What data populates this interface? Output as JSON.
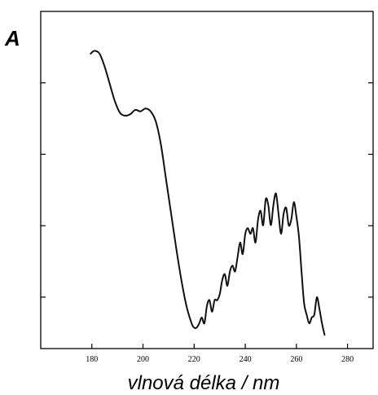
{
  "chart_data": {
    "type": "line",
    "panel_label": "A",
    "xlabel": "vlnová délka / nm",
    "ylabel": "",
    "xlim": [
      160,
      290
    ],
    "xticks": [
      180,
      200,
      220,
      240,
      260,
      280
    ],
    "xtick_labels": [
      "180",
      "200",
      "220",
      "240",
      "260",
      "280"
    ],
    "ylim": [
      0,
      1
    ],
    "y_tick_count": 4,
    "y_tick_labels": [],
    "grid": false,
    "series": [
      {
        "x": [
          179.5,
          181,
          183,
          185,
          187,
          189,
          191,
          193,
          195,
          197,
          199,
          201,
          203,
          205,
          207,
          209,
          211,
          213,
          215,
          217,
          219,
          220,
          221,
          222,
          223,
          224,
          225,
          226,
          227,
          228,
          229,
          230,
          231,
          232,
          233,
          234,
          235,
          236,
          237,
          238,
          239,
          240,
          241,
          242,
          243,
          244,
          245,
          246,
          247,
          248,
          249,
          250,
          251,
          252,
          253,
          254,
          255,
          256,
          257,
          258,
          259,
          260,
          261,
          262,
          263,
          264,
          265,
          266,
          267,
          268,
          269,
          270,
          271
        ],
        "y": [
          0.955,
          0.965,
          0.955,
          0.91,
          0.85,
          0.79,
          0.75,
          0.74,
          0.745,
          0.76,
          0.755,
          0.765,
          0.755,
          0.72,
          0.64,
          0.52,
          0.4,
          0.28,
          0.17,
          0.08,
          0.02,
          0.005,
          0.005,
          0.02,
          0.04,
          0.02,
          0.08,
          0.1,
          0.06,
          0.1,
          0.1,
          0.12,
          0.17,
          0.19,
          0.15,
          0.2,
          0.22,
          0.2,
          0.25,
          0.3,
          0.26,
          0.33,
          0.35,
          0.33,
          0.35,
          0.3,
          0.38,
          0.41,
          0.36,
          0.45,
          0.43,
          0.36,
          0.43,
          0.47,
          0.4,
          0.33,
          0.4,
          0.42,
          0.36,
          0.38,
          0.44,
          0.39,
          0.32,
          0.2,
          0.09,
          0.05,
          0.02,
          0.04,
          0.05,
          0.11,
          0.07,
          0.02,
          -0.02
        ]
      }
    ]
  }
}
